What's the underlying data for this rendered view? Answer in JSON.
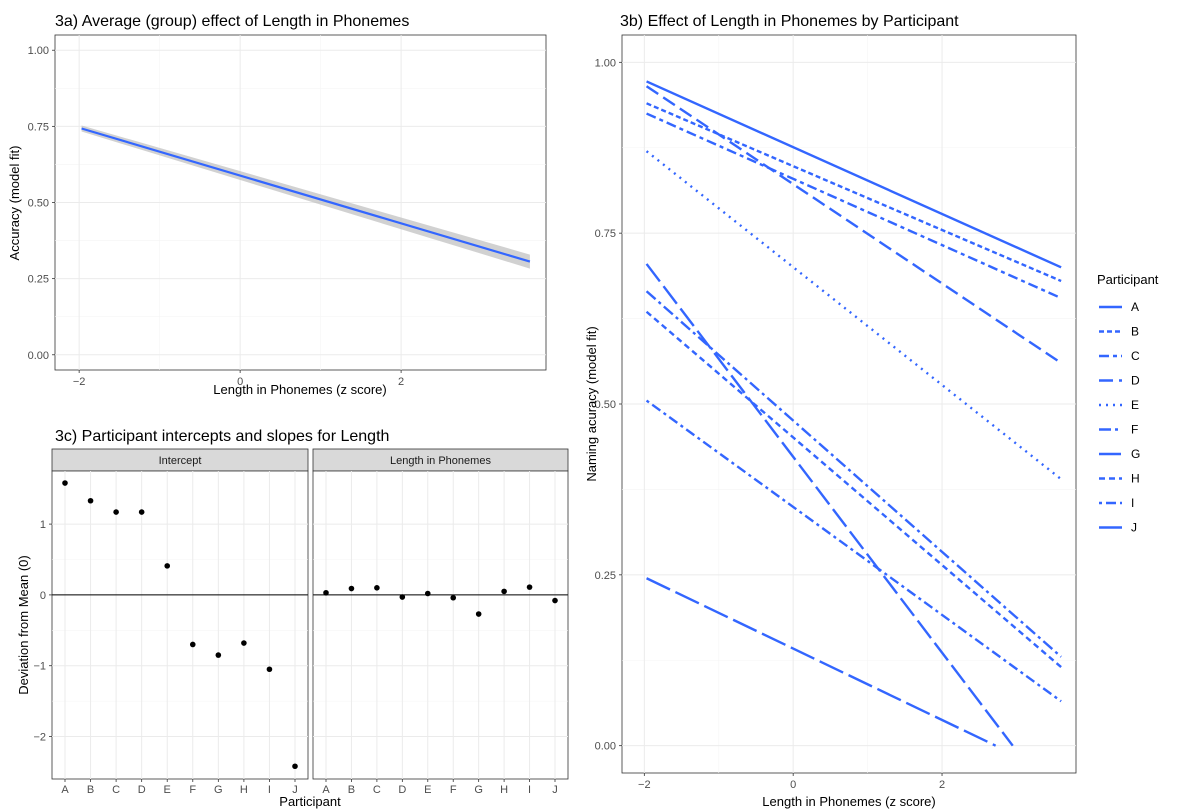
{
  "chart_data": [
    {
      "id": "3a",
      "type": "line",
      "title": "3a) Average (group) effect of Length in Phonemes",
      "xlabel": "Length in Phonemes (z score)",
      "ylabel": "Accuracy (model fit)",
      "xlim": [
        -2.3,
        3.8
      ],
      "ylim": [
        -0.05,
        1.05
      ],
      "xticks": [
        -2,
        0,
        2
      ],
      "yticks": [
        0.0,
        0.25,
        0.5,
        0.75,
        1.0
      ],
      "xtick_labels": [
        "−2",
        "0",
        "2"
      ],
      "ytick_labels": [
        "0.00",
        "0.25",
        "0.50",
        "0.75",
        "1.00"
      ],
      "grid": true,
      "line_color": "#3366ff",
      "ribbon_color": "#bdbdbd",
      "x": [
        -1.97,
        3.6
      ],
      "y": [
        0.743,
        0.306
      ],
      "ribbon_lower": [
        0.733,
        0.283
      ],
      "ribbon_upper": [
        0.753,
        0.329
      ]
    },
    {
      "id": "3b",
      "type": "line",
      "title": "3b) Effect of Length in Phonemes by Participant",
      "xlabel": "Length in Phonemes (z score)",
      "ylabel": "Naming acuracy (model fit)",
      "xlim": [
        -2.3,
        3.8
      ],
      "ylim": [
        -0.04,
        1.04
      ],
      "xticks": [
        -2,
        0,
        2
      ],
      "yticks": [
        0.0,
        0.25,
        0.5,
        0.75,
        1.0
      ],
      "xtick_labels": [
        "−2",
        "0",
        "2"
      ],
      "ytick_labels": [
        "0.00",
        "0.25",
        "0.50",
        "0.75",
        "1.00"
      ],
      "grid": true,
      "line_color": "#3366ff",
      "legend_title": "Participant",
      "legend_position": "right",
      "series": [
        {
          "name": "A",
          "dash": "",
          "x": [
            -1.97,
            3.6
          ],
          "y": [
            0.972,
            0.7
          ]
        },
        {
          "name": "B",
          "dash": "5 3",
          "x": [
            -1.97,
            3.6
          ],
          "y": [
            0.94,
            0.68
          ]
        },
        {
          "name": "C",
          "dash": "10 4 4 4",
          "x": [
            -1.97,
            3.6
          ],
          "y": [
            0.925,
            0.655
          ]
        },
        {
          "name": "D",
          "dash": "14 6",
          "x": [
            -1.97,
            3.6
          ],
          "y": [
            0.965,
            0.56
          ]
        },
        {
          "name": "E",
          "dash": "2 5",
          "x": [
            -1.97,
            3.6
          ],
          "y": [
            0.87,
            0.39
          ]
        },
        {
          "name": "F",
          "dash": "12 4 3 4",
          "x": [
            -1.97,
            3.6
          ],
          "y": [
            0.665,
            0.13
          ]
        },
        {
          "name": "G",
          "dash": "22 6",
          "x": [
            -1.97,
            2.95
          ],
          "y": [
            0.705,
            0.0
          ]
        },
        {
          "name": "H",
          "dash": "6 4",
          "x": [
            -1.97,
            3.6
          ],
          "y": [
            0.635,
            0.115
          ]
        },
        {
          "name": "I",
          "dash": "3 4 10 4",
          "x": [
            -1.97,
            3.6
          ],
          "y": [
            0.505,
            0.065
          ]
        },
        {
          "name": "J",
          "dash": "26 6",
          "x": [
            -1.97,
            2.72
          ],
          "y": [
            0.245,
            0.0
          ]
        }
      ]
    },
    {
      "id": "3c",
      "type": "scatter",
      "title": "3c) Participant intercepts and slopes for Length",
      "xlabel": "Participant",
      "ylabel": "Deviation from Mean (0)",
      "ylim": [
        -2.6,
        1.75
      ],
      "yticks": [
        -2,
        -1,
        0,
        1
      ],
      "ytick_labels": [
        "−2",
        "−1",
        "0",
        "1"
      ],
      "grid": true,
      "categories": [
        "A",
        "B",
        "C",
        "D",
        "E",
        "F",
        "G",
        "H",
        "I",
        "J"
      ],
      "facets": [
        {
          "label": "Intercept",
          "values": [
            1.58,
            1.33,
            1.17,
            1.17,
            0.41,
            -0.7,
            -0.85,
            -0.68,
            -1.05,
            -2.42
          ]
        },
        {
          "label": "Length in Phonemes",
          "values": [
            0.03,
            0.09,
            0.1,
            -0.03,
            0.02,
            -0.04,
            -0.27,
            0.05,
            0.11,
            -0.08
          ]
        }
      ]
    }
  ]
}
